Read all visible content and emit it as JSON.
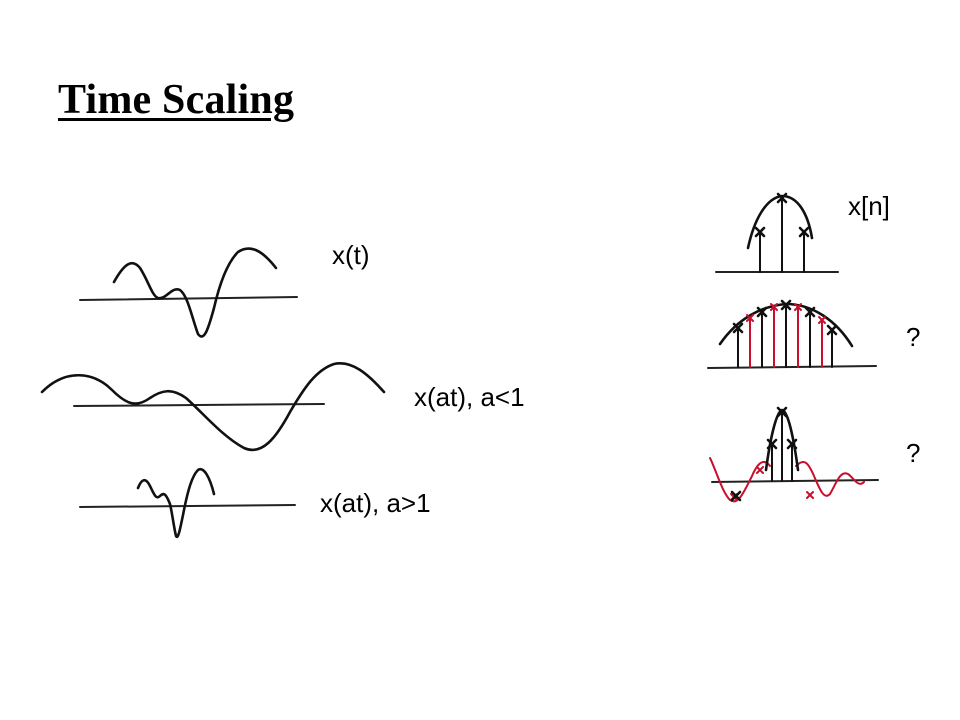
{
  "slide": {
    "title": "Time Scaling",
    "continuous": {
      "original_label": "x(t)",
      "stretched_label": "x(at), a<1",
      "compressed_label": "x(at), a>1"
    },
    "discrete": {
      "original_label": "x[n]",
      "upsampled_label": "?",
      "downsampled_label": "?"
    },
    "colors": {
      "ink": "#111111",
      "accent": "#c8102e",
      "background": "#ffffff"
    }
  }
}
